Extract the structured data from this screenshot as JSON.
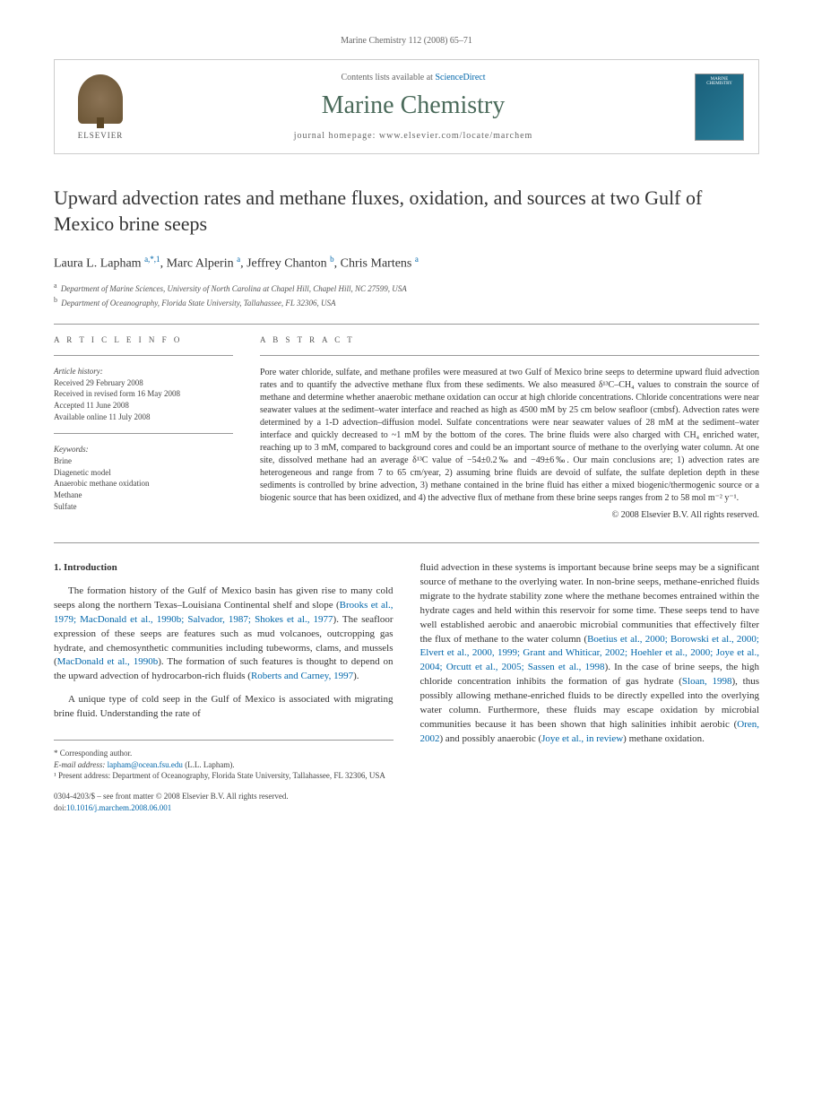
{
  "header": {
    "running_head": "Marine Chemistry 112 (2008) 65–71"
  },
  "masthead": {
    "publisher_name": "ELSEVIER",
    "contents_prefix": "Contents lists available at ",
    "contents_link": "ScienceDirect",
    "journal_name": "Marine Chemistry",
    "homepage_prefix": "journal homepage: ",
    "homepage_url": "www.elsevier.com/locate/marchem",
    "thumb_text": "MARINE CHEMISTRY"
  },
  "article": {
    "title": "Upward advection rates and methane fluxes, oxidation, and sources at two Gulf of Mexico brine seeps",
    "authors_html": "Laura L. Lapham <sup>a,*,1</sup>, Marc Alperin <sup>a</sup>, Jeffrey Chanton <sup>b</sup>, Chris Martens <sup>a</sup>",
    "affiliations": [
      {
        "mark": "a",
        "text": "Department of Marine Sciences, University of North Carolina at Chapel Hill, Chapel Hill, NC 27599, USA"
      },
      {
        "mark": "b",
        "text": "Department of Oceanography, Florida State University, Tallahassee, FL 32306, USA"
      }
    ]
  },
  "info": {
    "heading_info": "A R T I C L E   I N F O",
    "history_label": "Article history:",
    "history": [
      "Received 29 February 2008",
      "Received in revised form 16 May 2008",
      "Accepted 11 June 2008",
      "Available online 11 July 2008"
    ],
    "keywords_label": "Keywords:",
    "keywords": [
      "Brine",
      "Diagenetic model",
      "Anaerobic methane oxidation",
      "Methane",
      "Sulfate"
    ]
  },
  "abstract": {
    "heading": "A B S T R A C T",
    "text": "Pore water chloride, sulfate, and methane profiles were measured at two Gulf of Mexico brine seeps to determine upward fluid advection rates and to quantify the advective methane flux from these sediments. We also measured δ¹³C–CH₄ values to constrain the source of methane and determine whether anaerobic methane oxidation can occur at high chloride concentrations. Chloride concentrations were near seawater values at the sediment–water interface and reached as high as 4500 mM by 25 cm below seafloor (cmbsf). Advection rates were determined by a 1-D advection–diffusion model. Sulfate concentrations were near seawater values of 28 mM at the sediment–water interface and quickly decreased to ~1 mM by the bottom of the cores. The brine fluids were also charged with CH₄ enriched water, reaching up to 3 mM, compared to background cores and could be an important source of methane to the overlying water column. At one site, dissolved methane had an average δ¹³C value of −54±0.2‰ and −49±6‰. Our main conclusions are; 1) advection rates are heterogeneous and range from 7 to 65 cm/year, 2) assuming brine fluids are devoid of sulfate, the sulfate depletion depth in these sediments is controlled by brine advection, 3) methane contained in the brine fluid has either a mixed biogenic/thermogenic source or a biogenic source that has been oxidized, and 4) the advective flux of methane from these brine seeps ranges from 2 to 58 mol m⁻² y⁻¹.",
    "copyright": "© 2008 Elsevier B.V. All rights reserved."
  },
  "body": {
    "section_heading": "1. Introduction",
    "col1_p1": "The formation history of the Gulf of Mexico basin has given rise to many cold seeps along the northern Texas–Louisiana Continental shelf and slope (",
    "col1_p1_ref": "Brooks et al., 1979; MacDonald et al., 1990b; Salvador, 1987; Shokes et al., 1977",
    "col1_p1_end": "). The seafloor expression of these seeps are features such as mud volcanoes, outcropping gas hydrate, and chemosynthetic communities including tubeworms, clams, and mussels (",
    "col1_p1_ref2": "MacDonald et al., 1990b",
    "col1_p1_end2": "). The formation of such features is thought to depend on the upward advection of hydrocarbon-rich fluids (",
    "col1_p1_ref3": "Roberts and Carney, 1997",
    "col1_p1_end3": ").",
    "col1_p2": "A unique type of cold seep in the Gulf of Mexico is associated with migrating brine fluid. Understanding the rate of",
    "col2_p1": "fluid advection in these systems is important because brine seeps may be a significant source of methane to the overlying water. In non-brine seeps, methane-enriched fluids migrate to the hydrate stability zone where the methane becomes entrained within the hydrate cages and held within this reservoir for some time. These seeps tend to have well established aerobic and anaerobic microbial communities that effectively filter the flux of methane to the water column (",
    "col2_ref1": "Boetius et al., 2000; Borowski et al., 2000; Elvert et al., 2000, 1999; Grant and Whiticar, 2002; Hoehler et al., 2000; Joye et al., 2004; Orcutt et al., 2005; Sassen et al., 1998",
    "col2_p1b": "). In the case of brine seeps, the high chloride concentration inhibits the formation of gas hydrate (",
    "col2_ref2": "Sloan, 1998",
    "col2_p1c": "), thus possibly allowing methane-enriched fluids to be directly expelled into the overlying water column. Furthermore, these fluids may escape oxidation by microbial communities because it has been shown that high salinities inhibit aerobic (",
    "col2_ref3": "Oren, 2002",
    "col2_p1d": ") and possibly anaerobic (",
    "col2_ref4": "Joye et al., in review",
    "col2_p1e": ") methane oxidation."
  },
  "footer": {
    "corresponding": "* Corresponding author.",
    "email_label": "E-mail address: ",
    "email": "lapham@ocean.fsu.edu",
    "email_suffix": " (L.L. Lapham).",
    "present_address": "¹ Present address: Department of Oceanography, Florida State University, Tallahassee, FL 32306, USA",
    "issn_line": "0304-4203/$ – see front matter © 2008 Elsevier B.V. All rights reserved.",
    "doi_label": "doi:",
    "doi": "10.1016/j.marchem.2008.06.001"
  },
  "colors": {
    "link": "#0066aa",
    "journal_title": "#4a6a5a",
    "text": "#333333",
    "muted": "#666666",
    "rule": "#999999"
  }
}
